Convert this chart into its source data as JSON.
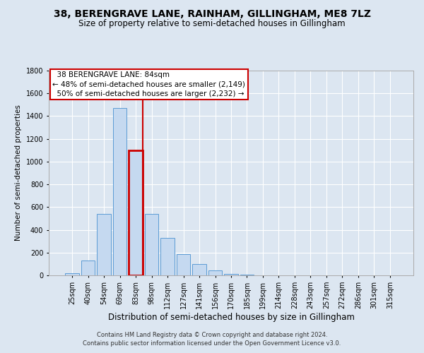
{
  "title": "38, BERENGRAVE LANE, RAINHAM, GILLINGHAM, ME8 7LZ",
  "subtitle": "Size of property relative to semi-detached houses in Gillingham",
  "xlabel": "Distribution of semi-detached houses by size in Gillingham",
  "ylabel": "Number of semi-detached properties",
  "footnote1": "Contains HM Land Registry data © Crown copyright and database right 2024.",
  "footnote2": "Contains public sector information licensed under the Open Government Licence v3.0.",
  "bar_labels": [
    "25sqm",
    "40sqm",
    "54sqm",
    "69sqm",
    "83sqm",
    "98sqm",
    "112sqm",
    "127sqm",
    "141sqm",
    "156sqm",
    "170sqm",
    "185sqm",
    "199sqm",
    "214sqm",
    "228sqm",
    "243sqm",
    "257sqm",
    "272sqm",
    "286sqm",
    "301sqm",
    "315sqm"
  ],
  "bar_values": [
    20,
    130,
    540,
    1470,
    1100,
    540,
    330,
    185,
    100,
    45,
    15,
    5,
    2,
    1,
    0,
    0,
    0,
    0,
    0,
    0,
    0
  ],
  "bar_color": "#c5d9f0",
  "bar_edge_color": "#5b9bd5",
  "highlight_index": 4,
  "highlight_color": "#cc0000",
  "property_label": "38 BERENGRAVE LANE: 84sqm",
  "pct_smaller": "48% of semi-detached houses are smaller (2,149)",
  "pct_larger": "50% of semi-detached houses are larger (2,232)",
  "ylim": [
    0,
    1800
  ],
  "yticks": [
    0,
    200,
    400,
    600,
    800,
    1000,
    1200,
    1400,
    1600,
    1800
  ],
  "background_color": "#dce6f1",
  "plot_background_color": "#dce6f1",
  "grid_color": "#ffffff",
  "title_fontsize": 10,
  "subtitle_fontsize": 8.5,
  "tick_fontsize": 7,
  "ylabel_fontsize": 7.5,
  "xlabel_fontsize": 8.5,
  "annot_fontsize": 7.5,
  "footnote_fontsize": 6
}
